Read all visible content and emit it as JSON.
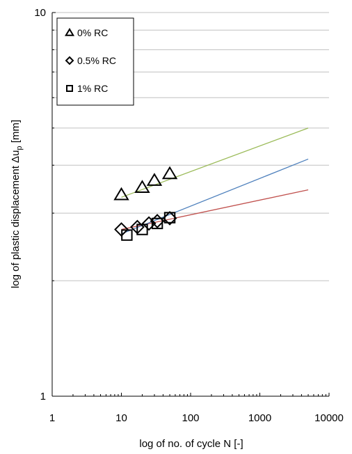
{
  "chart_data": {
    "type": "scatter",
    "xscale": "log",
    "yscale": "log",
    "xlim": [
      1,
      10000
    ],
    "ylim": [
      1,
      10
    ],
    "xlabel": "log of no. of cycle N [-]",
    "ylabel_main": "log of plastic displacement Δu",
    "ylabel_sub": "p",
    "ylabel_unit": " [mm]",
    "xticks": [
      {
        "value": 1,
        "label": "1"
      },
      {
        "value": 10,
        "label": "10"
      },
      {
        "value": 100,
        "label": "100"
      },
      {
        "value": 1000,
        "label": "1000"
      },
      {
        "value": 10000,
        "label": "10000"
      }
    ],
    "yticks": [
      {
        "value": 1,
        "label": "1"
      },
      {
        "value": 10,
        "label": "10"
      }
    ],
    "ygrid": [
      2,
      3,
      4,
      5,
      6,
      7,
      8,
      9,
      10
    ],
    "legend_position": "top-left",
    "series": [
      {
        "name": "0% RC",
        "marker": "triangle",
        "points": [
          [
            10,
            3.35
          ],
          [
            20,
            3.5
          ],
          [
            30,
            3.65
          ],
          [
            50,
            3.8
          ]
        ],
        "trend": {
          "x": [
            10,
            5000
          ],
          "y": [
            3.3,
            5.0
          ],
          "color": "#9bbb59"
        }
      },
      {
        "name": "0.5% RC",
        "marker": "diamond",
        "points": [
          [
            10,
            2.72
          ],
          [
            17,
            2.76
          ],
          [
            25,
            2.82
          ],
          [
            33,
            2.86
          ],
          [
            50,
            2.91
          ]
        ],
        "trend": {
          "x": [
            10,
            5000
          ],
          "y": [
            2.72,
            3.45
          ],
          "color": "#c0504d"
        }
      },
      {
        "name": "1% RC",
        "marker": "square",
        "points": [
          [
            12,
            2.63
          ],
          [
            20,
            2.72
          ],
          [
            33,
            2.82
          ],
          [
            50,
            2.92
          ]
        ],
        "trend": {
          "x": [
            10,
            5000
          ],
          "y": [
            2.65,
            4.15
          ],
          "color": "#4f81bd"
        }
      }
    ]
  }
}
